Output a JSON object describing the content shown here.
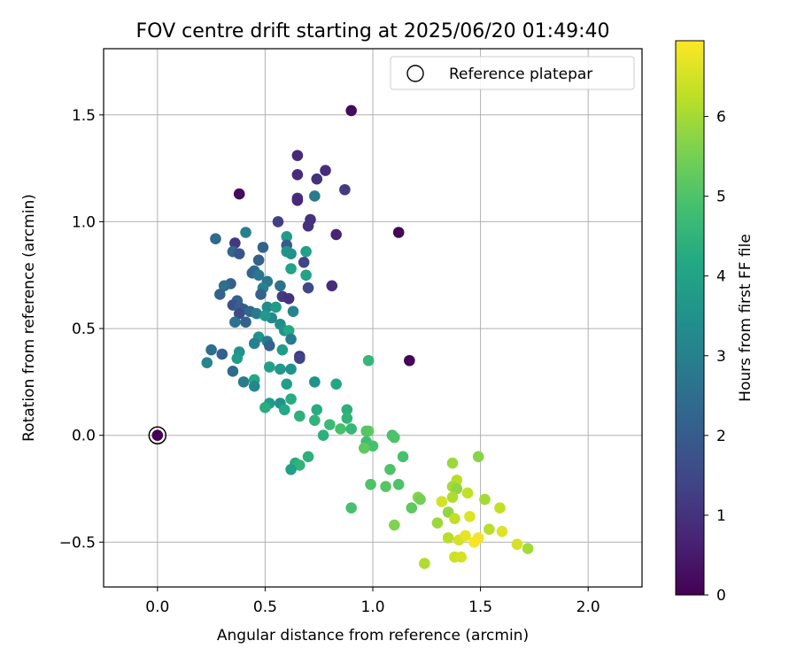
{
  "chart_data": {
    "type": "scatter",
    "title": "FOV centre drift starting at 2025/06/20 01:49:40",
    "xlabel": "Angular distance from reference (arcmin)",
    "ylabel": "Rotation from reference (arcmin)",
    "xlim": [
      -0.25,
      2.25
    ],
    "ylim": [
      -0.71,
      1.81
    ],
    "xticks": [
      0.0,
      0.5,
      1.0,
      1.5,
      2.0
    ],
    "xtick_labels": [
      "0.0",
      "0.5",
      "1.0",
      "1.5",
      "2.0"
    ],
    "yticks": [
      -0.5,
      0.0,
      0.5,
      1.0,
      1.5
    ],
    "ytick_labels": [
      "−0.5",
      "0.0",
      "0.5",
      "1.0",
      "1.5"
    ],
    "grid": true,
    "legend": {
      "placement": "top-right",
      "entries": [
        "Reference platepar"
      ]
    },
    "colorbar": {
      "label": "Hours from first FF file",
      "range": [
        0,
        6.95
      ],
      "ticks": [
        0,
        1,
        2,
        3,
        4,
        5,
        6
      ],
      "tick_labels": [
        "0",
        "1",
        "2",
        "3",
        "4",
        "5",
        "6"
      ],
      "colormap": "viridis"
    },
    "reference_point": {
      "x": 0.0,
      "y": 0.0,
      "color_value": 0.0
    },
    "points": [
      {
        "x": 0.9,
        "y": 1.52,
        "c": 0.2
      },
      {
        "x": 1.12,
        "y": 0.95,
        "c": 0.1
      },
      {
        "x": 1.17,
        "y": 0.35,
        "c": 0.1
      },
      {
        "x": 0.38,
        "y": 1.13,
        "c": 0.2
      },
      {
        "x": 0.65,
        "y": 1.31,
        "c": 0.8
      },
      {
        "x": 0.78,
        "y": 1.24,
        "c": 0.9
      },
      {
        "x": 0.65,
        "y": 1.22,
        "c": 0.9
      },
      {
        "x": 0.74,
        "y": 1.2,
        "c": 1.0
      },
      {
        "x": 0.87,
        "y": 1.15,
        "c": 1.2
      },
      {
        "x": 0.65,
        "y": 1.11,
        "c": 1.0
      },
      {
        "x": 0.65,
        "y": 1.1,
        "c": 0.8
      },
      {
        "x": 0.73,
        "y": 1.12,
        "c": 2.8
      },
      {
        "x": 0.71,
        "y": 1.01,
        "c": 1.0
      },
      {
        "x": 0.56,
        "y": 1.0,
        "c": 1.3
      },
      {
        "x": 0.7,
        "y": 0.98,
        "c": 1.0
      },
      {
        "x": 0.83,
        "y": 0.94,
        "c": 0.7
      },
      {
        "x": 0.41,
        "y": 0.95,
        "c": 3.0
      },
      {
        "x": 0.27,
        "y": 0.92,
        "c": 2.4
      },
      {
        "x": 0.6,
        "y": 0.93,
        "c": 3.8
      },
      {
        "x": 0.36,
        "y": 0.9,
        "c": 1.1
      },
      {
        "x": 0.6,
        "y": 0.89,
        "c": 2.0
      },
      {
        "x": 0.49,
        "y": 0.88,
        "c": 2.2
      },
      {
        "x": 0.35,
        "y": 0.86,
        "c": 2.3
      },
      {
        "x": 0.38,
        "y": 0.85,
        "c": 1.8
      },
      {
        "x": 0.6,
        "y": 0.86,
        "c": 3.6
      },
      {
        "x": 0.62,
        "y": 0.85,
        "c": 3.5
      },
      {
        "x": 0.69,
        "y": 0.86,
        "c": 3.9
      },
      {
        "x": 0.47,
        "y": 0.82,
        "c": 2.1
      },
      {
        "x": 0.68,
        "y": 0.81,
        "c": 1.4
      },
      {
        "x": 0.62,
        "y": 0.78,
        "c": 4.0
      },
      {
        "x": 0.45,
        "y": 0.77,
        "c": 2.5
      },
      {
        "x": 0.44,
        "y": 0.76,
        "c": 2.3
      },
      {
        "x": 0.47,
        "y": 0.75,
        "c": 2.7
      },
      {
        "x": 0.69,
        "y": 0.75,
        "c": 4.0
      },
      {
        "x": 0.57,
        "y": 0.7,
        "c": 2.6
      },
      {
        "x": 0.51,
        "y": 0.72,
        "c": 2.7
      },
      {
        "x": 0.34,
        "y": 0.71,
        "c": 2.1
      },
      {
        "x": 0.31,
        "y": 0.7,
        "c": 2.5
      },
      {
        "x": 0.49,
        "y": 0.69,
        "c": 3.0
      },
      {
        "x": 0.7,
        "y": 0.69,
        "c": 1.5
      },
      {
        "x": 0.81,
        "y": 0.7,
        "c": 0.9
      },
      {
        "x": 0.48,
        "y": 0.66,
        "c": 2.2
      },
      {
        "x": 0.29,
        "y": 0.66,
        "c": 2.2
      },
      {
        "x": 0.58,
        "y": 0.65,
        "c": 1.2
      },
      {
        "x": 0.61,
        "y": 0.64,
        "c": 1.0
      },
      {
        "x": 0.37,
        "y": 0.63,
        "c": 2.2
      },
      {
        "x": 0.35,
        "y": 0.61,
        "c": 1.7
      },
      {
        "x": 0.38,
        "y": 0.6,
        "c": 2.1
      },
      {
        "x": 0.51,
        "y": 0.6,
        "c": 3.3
      },
      {
        "x": 0.4,
        "y": 0.59,
        "c": 2.0
      },
      {
        "x": 0.43,
        "y": 0.58,
        "c": 2.3
      },
      {
        "x": 0.55,
        "y": 0.6,
        "c": 3.8
      },
      {
        "x": 0.63,
        "y": 0.58,
        "c": 3.1
      },
      {
        "x": 0.38,
        "y": 0.57,
        "c": 1.6
      },
      {
        "x": 0.46,
        "y": 0.57,
        "c": 2.8
      },
      {
        "x": 0.53,
        "y": 0.55,
        "c": 3.2
      },
      {
        "x": 0.5,
        "y": 0.56,
        "c": 3.7
      },
      {
        "x": 0.36,
        "y": 0.53,
        "c": 2.6
      },
      {
        "x": 0.41,
        "y": 0.53,
        "c": 2.2
      },
      {
        "x": 0.57,
        "y": 0.52,
        "c": 3.4
      },
      {
        "x": 0.59,
        "y": 0.49,
        "c": 3.6
      },
      {
        "x": 0.61,
        "y": 0.49,
        "c": 4.2
      },
      {
        "x": 0.47,
        "y": 0.46,
        "c": 3.5
      },
      {
        "x": 0.45,
        "y": 0.43,
        "c": 3.0
      },
      {
        "x": 0.51,
        "y": 0.44,
        "c": 2.9
      },
      {
        "x": 0.52,
        "y": 0.42,
        "c": 2.2
      },
      {
        "x": 0.62,
        "y": 0.45,
        "c": 2.9
      },
      {
        "x": 0.58,
        "y": 0.4,
        "c": 3.8
      },
      {
        "x": 0.25,
        "y": 0.4,
        "c": 2.5
      },
      {
        "x": 0.3,
        "y": 0.38,
        "c": 2.1
      },
      {
        "x": 0.38,
        "y": 0.39,
        "c": 3.5
      },
      {
        "x": 0.66,
        "y": 0.37,
        "c": 1.1
      },
      {
        "x": 0.66,
        "y": 0.36,
        "c": 1.4
      },
      {
        "x": 0.37,
        "y": 0.36,
        "c": 3.8
      },
      {
        "x": 0.23,
        "y": 0.34,
        "c": 3.2
      },
      {
        "x": 0.98,
        "y": 0.35,
        "c": 4.6
      },
      {
        "x": 0.52,
        "y": 0.32,
        "c": 3.9
      },
      {
        "x": 0.57,
        "y": 0.31,
        "c": 3.7
      },
      {
        "x": 0.62,
        "y": 0.31,
        "c": 3.5
      },
      {
        "x": 0.35,
        "y": 0.3,
        "c": 2.4
      },
      {
        "x": 0.45,
        "y": 0.26,
        "c": 4.2
      },
      {
        "x": 0.4,
        "y": 0.25,
        "c": 2.9
      },
      {
        "x": 0.45,
        "y": 0.23,
        "c": 3.2
      },
      {
        "x": 0.73,
        "y": 0.25,
        "c": 3.5
      },
      {
        "x": 0.83,
        "y": 0.24,
        "c": 4.1
      },
      {
        "x": 0.6,
        "y": 0.24,
        "c": 3.9
      },
      {
        "x": 0.62,
        "y": 0.17,
        "c": 4.3
      },
      {
        "x": 0.52,
        "y": 0.15,
        "c": 3.8
      },
      {
        "x": 0.57,
        "y": 0.15,
        "c": 3.5
      },
      {
        "x": 0.5,
        "y": 0.13,
        "c": 4.3
      },
      {
        "x": 0.59,
        "y": 0.12,
        "c": 4.2
      },
      {
        "x": 0.74,
        "y": 0.12,
        "c": 4.3
      },
      {
        "x": 0.66,
        "y": 0.09,
        "c": 4.4
      },
      {
        "x": 0.88,
        "y": 0.12,
        "c": 4.4
      },
      {
        "x": 0.88,
        "y": 0.08,
        "c": 4.5
      },
      {
        "x": 0.73,
        "y": 0.07,
        "c": 4.5
      },
      {
        "x": 0.8,
        "y": 0.05,
        "c": 4.7
      },
      {
        "x": 0.85,
        "y": 0.03,
        "c": 4.9
      },
      {
        "x": 0.9,
        "y": 0.03,
        "c": 4.6
      },
      {
        "x": 0.98,
        "y": 0.02,
        "c": 5.3
      },
      {
        "x": 0.97,
        "y": 0.02,
        "c": 5.1
      },
      {
        "x": 0.77,
        "y": 0.0,
        "c": 4.4
      },
      {
        "x": 1.09,
        "y": 0.0,
        "c": 4.9
      },
      {
        "x": 1.1,
        "y": -0.01,
        "c": 5.0
      },
      {
        "x": 0.97,
        "y": -0.03,
        "c": 4.8
      },
      {
        "x": 1.0,
        "y": -0.05,
        "c": 4.9
      },
      {
        "x": 0.96,
        "y": -0.06,
        "c": 5.2
      },
      {
        "x": 1.14,
        "y": -0.1,
        "c": 4.9
      },
      {
        "x": 1.49,
        "y": -0.1,
        "c": 5.7
      },
      {
        "x": 1.37,
        "y": -0.13,
        "c": 5.9
      },
      {
        "x": 1.08,
        "y": -0.16,
        "c": 5.0
      },
      {
        "x": 0.7,
        "y": -0.1,
        "c": 4.4
      },
      {
        "x": 0.64,
        "y": -0.13,
        "c": 4.3
      },
      {
        "x": 0.66,
        "y": -0.14,
        "c": 4.5
      },
      {
        "x": 0.62,
        "y": -0.16,
        "c": 3.9
      },
      {
        "x": 1.39,
        "y": -0.21,
        "c": 6.2
      },
      {
        "x": 0.99,
        "y": -0.23,
        "c": 5.0
      },
      {
        "x": 1.06,
        "y": -0.24,
        "c": 5.1
      },
      {
        "x": 1.12,
        "y": -0.23,
        "c": 5.0
      },
      {
        "x": 1.37,
        "y": -0.24,
        "c": 6.0
      },
      {
        "x": 1.39,
        "y": -0.25,
        "c": 5.8
      },
      {
        "x": 1.44,
        "y": -0.27,
        "c": 6.3
      },
      {
        "x": 1.21,
        "y": -0.29,
        "c": 5.7
      },
      {
        "x": 1.22,
        "y": -0.3,
        "c": 5.5
      },
      {
        "x": 1.37,
        "y": -0.29,
        "c": 6.1
      },
      {
        "x": 1.32,
        "y": -0.31,
        "c": 6.5
      },
      {
        "x": 1.52,
        "y": -0.3,
        "c": 6.0
      },
      {
        "x": 1.18,
        "y": -0.34,
        "c": 5.2
      },
      {
        "x": 1.59,
        "y": -0.34,
        "c": 6.3
      },
      {
        "x": 0.9,
        "y": -0.34,
        "c": 4.9
      },
      {
        "x": 1.35,
        "y": -0.36,
        "c": 5.8
      },
      {
        "x": 1.45,
        "y": -0.38,
        "c": 6.6
      },
      {
        "x": 1.3,
        "y": -0.41,
        "c": 5.9
      },
      {
        "x": 1.38,
        "y": -0.39,
        "c": 6.3
      },
      {
        "x": 1.1,
        "y": -0.42,
        "c": 5.6
      },
      {
        "x": 1.54,
        "y": -0.44,
        "c": 6.2
      },
      {
        "x": 1.6,
        "y": -0.45,
        "c": 6.6
      },
      {
        "x": 1.35,
        "y": -0.48,
        "c": 6.2
      },
      {
        "x": 1.4,
        "y": -0.49,
        "c": 6.5
      },
      {
        "x": 1.43,
        "y": -0.47,
        "c": 6.7
      },
      {
        "x": 1.49,
        "y": -0.48,
        "c": 6.8
      },
      {
        "x": 1.47,
        "y": -0.5,
        "c": 6.9
      },
      {
        "x": 1.67,
        "y": -0.51,
        "c": 6.5
      },
      {
        "x": 1.72,
        "y": -0.53,
        "c": 6.0
      },
      {
        "x": 1.38,
        "y": -0.57,
        "c": 6.4
      },
      {
        "x": 1.41,
        "y": -0.57,
        "c": 6.5
      },
      {
        "x": 1.24,
        "y": -0.6,
        "c": 6.1
      }
    ]
  }
}
